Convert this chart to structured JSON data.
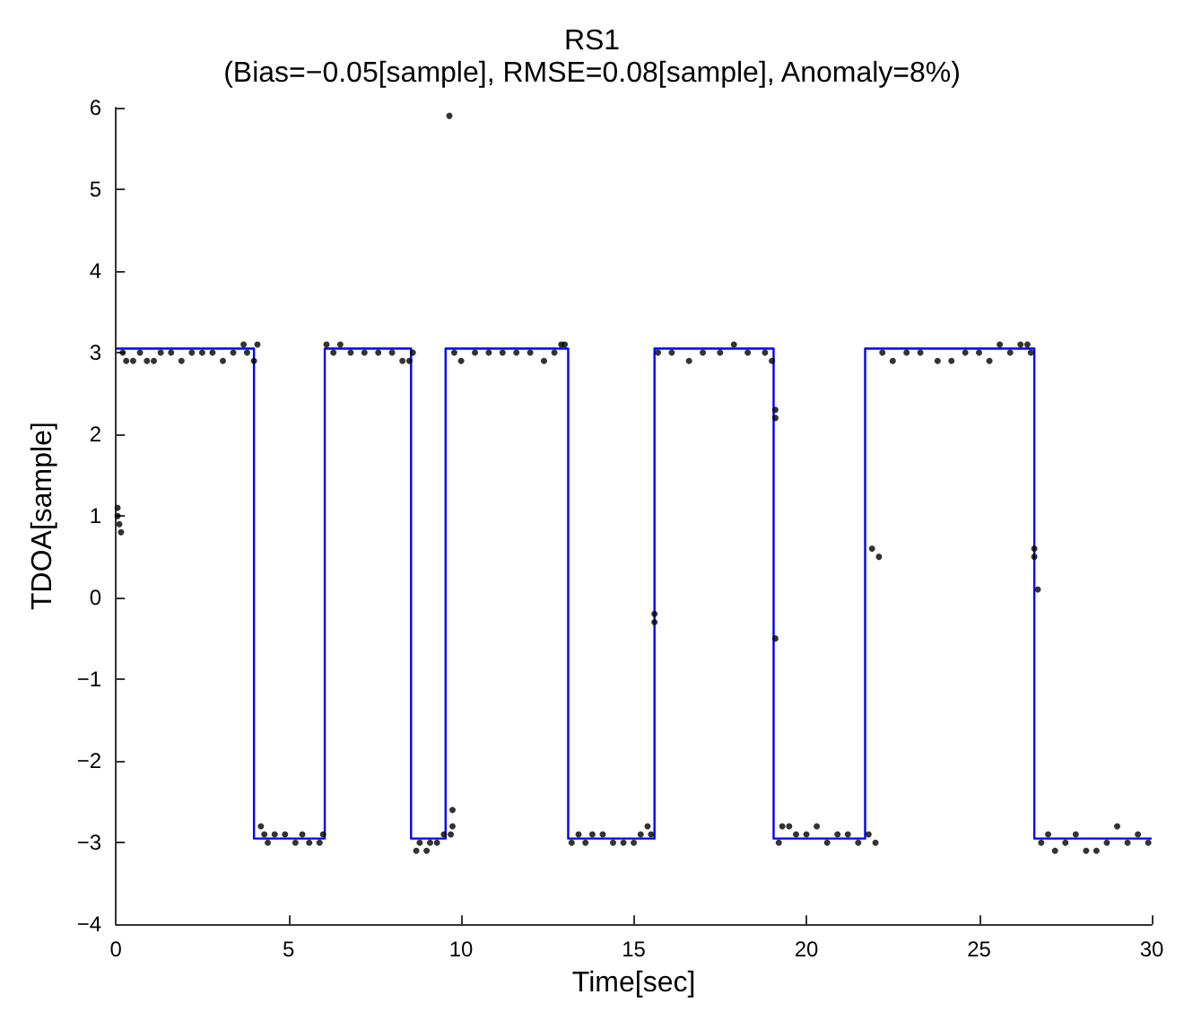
{
  "chart_data": {
    "type": "scatter",
    "title": "RS1",
    "subtitle": "(Bias=−0.05[sample], RMSE=0.08[sample], Anomaly=8%)",
    "xlabel": "Time[sec]",
    "ylabel": "TDOA[sample]",
    "xlim": [
      0,
      30
    ],
    "xticks": [
      0,
      5,
      10,
      15,
      20,
      25,
      30
    ],
    "ylim": [
      -4,
      6
    ],
    "yticks": [
      -4,
      -3,
      -2,
      -1,
      0,
      1,
      2,
      3,
      4,
      5,
      6
    ],
    "grid": false,
    "series": [
      {
        "type": "step",
        "color": "#0000ff",
        "marker": "none",
        "x": [
          0,
          4,
          6.05,
          8.55,
          9.55,
          13.1,
          15.6,
          19.05,
          21.7,
          26.6,
          30
        ],
        "values": [
          3.05,
          -2.95,
          3.05,
          -2.95,
          3.05,
          -2.95,
          3.05,
          -2.95,
          3.05,
          -2.95,
          -2.95
        ]
      },
      {
        "color": "#000000",
        "marker": "circle",
        "x": [
          0.05,
          0.1,
          0.15,
          0.05,
          0.2,
          0.3,
          0.5,
          0.7,
          0.9,
          1.1,
          1.3,
          1.6,
          1.9,
          2.2,
          2.5,
          2.8,
          3.1,
          3.4,
          3.7,
          3.8,
          4.0,
          4.1,
          4.2,
          4.3,
          4.4,
          4.6,
          4.9,
          5.2,
          5.4,
          5.6,
          5.9,
          6.0,
          6.1,
          6.3,
          6.5,
          6.8,
          7.2,
          7.6,
          8.0,
          8.3,
          8.5,
          8.6,
          8.7,
          8.8,
          9.0,
          9.1,
          9.3,
          9.5,
          9.7,
          9.75,
          9.75,
          9.66,
          9.8,
          10.0,
          10.4,
          10.8,
          11.2,
          11.6,
          12.0,
          12.4,
          12.7,
          12.9,
          13.0,
          13.2,
          13.4,
          13.6,
          13.8,
          14.1,
          14.4,
          14.7,
          15.0,
          15.2,
          15.4,
          15.5,
          15.6,
          15.6,
          15.7,
          16.1,
          16.6,
          17.0,
          17.5,
          17.9,
          18.3,
          18.8,
          19.0,
          19.1,
          19.1,
          19.1,
          19.2,
          19.3,
          19.5,
          19.7,
          20.0,
          20.3,
          20.6,
          20.9,
          21.2,
          21.5,
          21.8,
          22.0,
          21.9,
          22.1,
          22.2,
          22.5,
          22.9,
          23.3,
          23.8,
          24.2,
          24.6,
          25.0,
          25.3,
          25.6,
          25.9,
          26.2,
          26.4,
          26.5,
          26.6,
          26.6,
          26.7,
          26.8,
          27.0,
          27.2,
          27.5,
          27.8,
          28.1,
          28.4,
          28.7,
          29.0,
          29.3,
          29.6,
          29.9
        ],
        "values": [
          1.0,
          0.9,
          0.8,
          1.1,
          3.0,
          2.9,
          2.9,
          3.0,
          2.9,
          2.9,
          3.0,
          3.0,
          2.9,
          3.0,
          3.0,
          3.0,
          2.9,
          3.0,
          3.1,
          3.0,
          2.9,
          3.1,
          -2.8,
          -2.9,
          -3.0,
          -2.9,
          -2.9,
          -3.0,
          -2.9,
          -3.0,
          -3.0,
          -2.9,
          3.1,
          3.0,
          3.1,
          3.0,
          3.0,
          3.0,
          3.0,
          2.9,
          2.9,
          3.0,
          -3.1,
          -3.0,
          -3.1,
          -3.0,
          -3.0,
          -2.9,
          -2.9,
          -2.8,
          -2.6,
          5.9,
          3.0,
          2.9,
          3.0,
          3.0,
          3.0,
          3.0,
          3.0,
          2.9,
          3.0,
          3.1,
          3.1,
          -3.0,
          -2.9,
          -3.0,
          -2.9,
          -2.9,
          -3.0,
          -3.0,
          -3.0,
          -2.9,
          -2.8,
          -2.9,
          -0.2,
          -0.3,
          3.0,
          3.0,
          2.9,
          3.0,
          3.0,
          3.1,
          3.0,
          3.0,
          2.9,
          2.3,
          2.2,
          -0.5,
          -3.0,
          -2.8,
          -2.8,
          -2.9,
          -2.9,
          -2.8,
          -3.0,
          -2.9,
          -2.9,
          -3.0,
          -2.9,
          -3.0,
          0.6,
          0.5,
          3.0,
          2.9,
          3.0,
          3.0,
          2.9,
          2.9,
          3.0,
          3.0,
          2.9,
          3.1,
          3.0,
          3.1,
          3.1,
          3.0,
          0.6,
          0.5,
          0.1,
          -3.0,
          -2.9,
          -3.1,
          -3.0,
          -2.9,
          -3.1,
          -3.1,
          -3.0,
          -2.8,
          -3.0,
          -2.9,
          -3.0
        ]
      }
    ]
  }
}
